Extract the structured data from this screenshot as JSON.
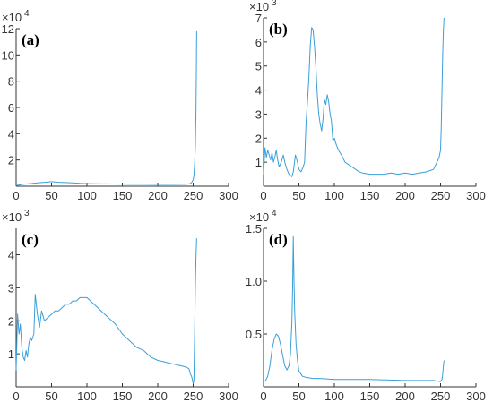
{
  "colors": {
    "line": "#3a9fd8",
    "axis": "#333333"
  },
  "chart_data": [
    {
      "type": "line",
      "panel_label": "(a)",
      "exponent_base": "×10",
      "exponent_power": "4",
      "xlim": [
        0,
        300
      ],
      "ylim": [
        0,
        12
      ],
      "x_ticks": [
        "0",
        "50",
        "100",
        "150",
        "200",
        "250",
        "300"
      ],
      "y_ticks": [
        "2",
        "4",
        "6",
        "8",
        "10",
        "12"
      ],
      "x": [
        0,
        5,
        10,
        20,
        30,
        40,
        50,
        60,
        70,
        80,
        90,
        100,
        120,
        140,
        160,
        180,
        200,
        220,
        240,
        246,
        248,
        250,
        251,
        252,
        253,
        254,
        255
      ],
      "values": [
        0.05,
        0.1,
        0.15,
        0.2,
        0.25,
        0.3,
        0.35,
        0.3,
        0.28,
        0.26,
        0.22,
        0.2,
        0.18,
        0.17,
        0.16,
        0.15,
        0.14,
        0.14,
        0.15,
        0.2,
        0.3,
        0.5,
        0.8,
        1.6,
        3.0,
        6.0,
        11.8
      ]
    },
    {
      "type": "line",
      "panel_label": "(b)",
      "exponent_base": "×10",
      "exponent_power": "3",
      "xlim": [
        0,
        300
      ],
      "ylim": [
        0,
        7
      ],
      "x_ticks": [
        "0",
        "50",
        "100",
        "150",
        "200",
        "250",
        "300"
      ],
      "y_ticks": [
        "1",
        "2",
        "3",
        "4",
        "5",
        "6",
        "7"
      ],
      "x": [
        0,
        2,
        4,
        6,
        8,
        10,
        12,
        14,
        16,
        18,
        20,
        22,
        25,
        28,
        30,
        33,
        36,
        40,
        42,
        45,
        48,
        50,
        53,
        56,
        58,
        60,
        62,
        64,
        66,
        68,
        70,
        72,
        74,
        76,
        78,
        80,
        82,
        84,
        86,
        88,
        90,
        92,
        94,
        96,
        98,
        100,
        103,
        106,
        110,
        115,
        120,
        125,
        130,
        135,
        140,
        150,
        160,
        170,
        180,
        190,
        200,
        210,
        220,
        230,
        240,
        245,
        248,
        250,
        251,
        252,
        253,
        254,
        255
      ],
      "values": [
        0.5,
        1.6,
        1.2,
        1.5,
        1.3,
        1.1,
        1.4,
        1.0,
        1.2,
        1.5,
        1.1,
        0.8,
        1.0,
        1.3,
        1.0,
        0.7,
        0.5,
        0.4,
        0.6,
        1.3,
        1.0,
        0.7,
        0.6,
        0.8,
        1.0,
        2.6,
        3.5,
        4.5,
        5.8,
        6.6,
        6.5,
        5.8,
        4.9,
        3.8,
        3.0,
        2.6,
        2.3,
        2.8,
        3.6,
        3.4,
        3.8,
        3.5,
        3.0,
        2.7,
        1.9,
        2.0,
        1.7,
        1.5,
        1.3,
        1.0,
        0.9,
        0.8,
        0.7,
        0.6,
        0.55,
        0.5,
        0.5,
        0.5,
        0.55,
        0.5,
        0.55,
        0.5,
        0.55,
        0.6,
        0.7,
        1.0,
        1.2,
        1.5,
        2.5,
        4.0,
        5.5,
        6.5,
        7.0
      ]
    },
    {
      "type": "line",
      "panel_label": "(c)",
      "exponent_base": "×10",
      "exponent_power": "3",
      "xlim": [
        0,
        300
      ],
      "ylim": [
        0,
        4.8
      ],
      "x_ticks": [
        "0",
        "50",
        "100",
        "150",
        "200",
        "250",
        "300"
      ],
      "y_ticks": [
        "1",
        "2",
        "3",
        "4"
      ],
      "x": [
        0,
        2,
        4,
        6,
        8,
        10,
        12,
        14,
        16,
        18,
        20,
        22,
        25,
        27,
        30,
        33,
        36,
        40,
        45,
        50,
        55,
        60,
        65,
        70,
        75,
        80,
        85,
        90,
        95,
        100,
        105,
        110,
        115,
        120,
        130,
        140,
        150,
        160,
        170,
        180,
        190,
        200,
        210,
        220,
        230,
        240,
        244,
        246,
        248,
        250,
        251,
        252,
        253,
        254,
        255
      ],
      "values": [
        0.5,
        2.2,
        1.6,
        1.9,
        1.2,
        0.9,
        0.8,
        1.1,
        0.9,
        1.3,
        1.5,
        1.4,
        1.6,
        2.8,
        2.2,
        1.8,
        2.3,
        2.0,
        2.1,
        2.2,
        2.3,
        2.3,
        2.4,
        2.5,
        2.5,
        2.6,
        2.6,
        2.7,
        2.7,
        2.7,
        2.6,
        2.5,
        2.4,
        2.3,
        2.1,
        1.9,
        1.6,
        1.4,
        1.2,
        1.1,
        0.9,
        0.8,
        0.75,
        0.7,
        0.65,
        0.6,
        0.55,
        0.4,
        0.3,
        0.1,
        0.2,
        1.5,
        3.0,
        4.0,
        4.5
      ]
    },
    {
      "type": "line",
      "panel_label": "(d)",
      "exponent_base": "×10",
      "exponent_power": "4",
      "xlim": [
        0,
        300
      ],
      "ylim": [
        0,
        1.5
      ],
      "x_ticks": [
        "0",
        "50",
        "100",
        "150",
        "200",
        "250",
        "300"
      ],
      "y_ticks": [
        "0.5",
        "1.0",
        "1.5"
      ],
      "x": [
        0,
        3,
        6,
        9,
        12,
        15,
        18,
        21,
        24,
        27,
        30,
        33,
        36,
        38,
        40,
        41,
        42,
        43,
        44,
        46,
        48,
        50,
        55,
        60,
        70,
        80,
        100,
        150,
        200,
        240,
        250,
        252,
        253,
        254,
        255
      ],
      "values": [
        0.05,
        0.06,
        0.1,
        0.2,
        0.35,
        0.45,
        0.5,
        0.48,
        0.4,
        0.3,
        0.2,
        0.16,
        0.2,
        0.3,
        0.6,
        0.9,
        1.42,
        1.0,
        0.7,
        0.4,
        0.25,
        0.15,
        0.1,
        0.09,
        0.08,
        0.08,
        0.07,
        0.07,
        0.06,
        0.06,
        0.05,
        0.07,
        0.12,
        0.2,
        0.25
      ]
    }
  ]
}
